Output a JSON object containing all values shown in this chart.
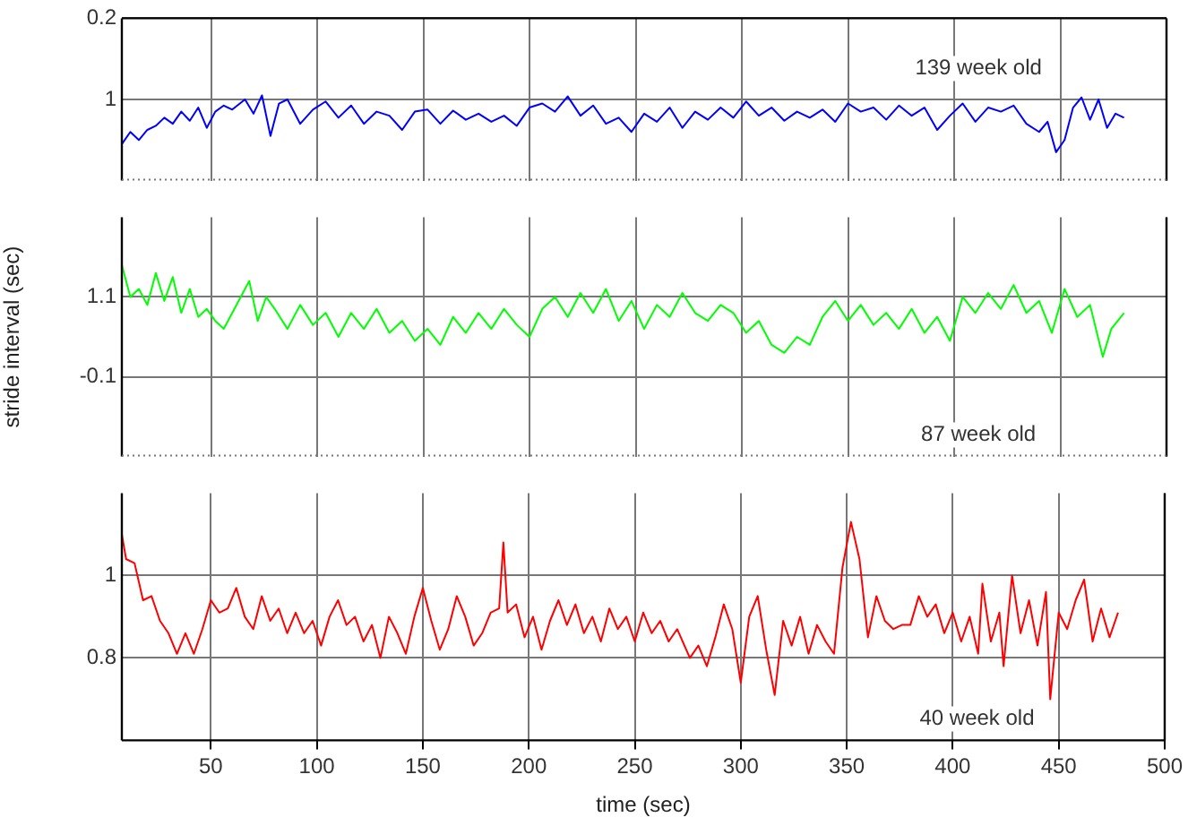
{
  "chart_data": [
    {
      "type": "line",
      "xlim": [
        8,
        500
      ],
      "xticks": [
        50,
        100,
        150,
        200,
        250,
        300,
        350,
        400,
        450,
        500
      ],
      "ylim": [
        1.8,
        0.2
      ],
      "yticks": [
        1,
        0.2
      ],
      "grid": true,
      "tick_labels": "y",
      "annotations": [
        "139 week old"
      ],
      "series": [
        {
          "color": "#0000ff",
          "x": [
            8,
            12,
            16,
            20,
            24,
            28,
            32,
            36,
            40,
            44,
            48,
            52,
            56,
            60,
            66,
            70,
            74,
            78,
            82,
            86,
            92,
            98,
            104,
            110,
            116,
            122,
            128,
            134,
            140,
            146,
            152,
            158,
            164,
            170,
            176,
            182,
            188,
            194,
            200,
            206,
            212,
            218,
            224,
            230,
            236,
            242,
            248,
            254,
            260,
            266,
            272,
            278,
            284,
            290,
            296,
            302,
            308,
            314,
            320,
            326,
            332,
            338,
            344,
            350,
            356,
            362,
            368,
            374,
            380,
            386,
            392,
            398,
            404,
            410,
            416,
            422,
            428,
            434,
            440,
            444,
            448,
            452,
            456,
            460,
            464,
            468,
            472,
            476,
            480
          ],
          "values": [
            1.44,
            1.32,
            1.4,
            1.3,
            1.26,
            1.18,
            1.24,
            1.12,
            1.21,
            1.08,
            1.28,
            1.12,
            1.06,
            1.1,
            1.0,
            1.14,
            0.96,
            1.36,
            1.04,
            1.0,
            1.24,
            1.1,
            1.02,
            1.18,
            1.06,
            1.24,
            1.12,
            1.16,
            1.3,
            1.12,
            1.1,
            1.24,
            1.11,
            1.2,
            1.14,
            1.22,
            1.16,
            1.26,
            1.08,
            1.04,
            1.12,
            0.97,
            1.16,
            1.06,
            1.24,
            1.18,
            1.32,
            1.14,
            1.22,
            1.08,
            1.28,
            1.12,
            1.2,
            1.08,
            1.18,
            1.02,
            1.16,
            1.08,
            1.21,
            1.12,
            1.18,
            1.1,
            1.22,
            1.04,
            1.12,
            1.08,
            1.2,
            1.06,
            1.16,
            1.08,
            1.3,
            1.16,
            1.04,
            1.22,
            1.08,
            1.12,
            1.06,
            1.24,
            1.32,
            1.22,
            1.52,
            1.4,
            1.08,
            0.98,
            1.2,
            1.0,
            1.28,
            1.14,
            1.18
          ]
        }
      ]
    },
    {
      "type": "line",
      "ylabel": "stride interval (sec)",
      "xlim": [
        8,
        500
      ],
      "xticks": [
        50,
        100,
        150,
        200,
        250,
        300,
        350,
        400,
        450,
        500
      ],
      "ylim": [
        -1.3,
        2.3
      ],
      "yticks": [
        -0.1,
        1.1
      ],
      "grid": true,
      "tick_labels": "y",
      "annotations": [
        "87 week old"
      ],
      "series": [
        {
          "color": "#00ff00",
          "x": [
            8,
            12,
            16,
            20,
            24,
            28,
            32,
            36,
            40,
            44,
            48,
            52,
            56,
            60,
            64,
            68,
            72,
            76,
            80,
            86,
            92,
            98,
            104,
            110,
            116,
            122,
            128,
            134,
            140,
            146,
            152,
            158,
            164,
            170,
            176,
            182,
            188,
            194,
            200,
            206,
            212,
            218,
            224,
            230,
            236,
            242,
            248,
            254,
            260,
            266,
            272,
            278,
            284,
            290,
            296,
            302,
            308,
            314,
            320,
            326,
            332,
            338,
            344,
            350,
            356,
            362,
            368,
            374,
            380,
            386,
            392,
            398,
            404,
            410,
            416,
            422,
            428,
            434,
            440,
            446,
            452,
            458,
            464,
            470,
            474,
            480
          ],
          "values": [
            1.58,
            1.1,
            1.22,
            0.98,
            1.46,
            1.04,
            1.4,
            0.86,
            1.22,
            0.8,
            0.92,
            0.74,
            0.62,
            0.86,
            1.1,
            1.34,
            0.74,
            1.1,
            0.92,
            0.62,
            0.98,
            0.68,
            0.86,
            0.5,
            0.86,
            0.62,
            0.92,
            0.56,
            0.74,
            0.44,
            0.62,
            0.38,
            0.8,
            0.56,
            0.86,
            0.62,
            0.92,
            0.68,
            0.5,
            0.92,
            1.1,
            0.8,
            1.16,
            0.86,
            1.22,
            0.74,
            1.04,
            0.62,
            0.98,
            0.8,
            1.16,
            0.86,
            0.74,
            0.98,
            0.86,
            0.56,
            0.74,
            0.38,
            0.26,
            0.5,
            0.38,
            0.8,
            1.04,
            0.74,
            0.98,
            0.68,
            0.86,
            0.62,
            0.92,
            0.56,
            0.8,
            0.44,
            1.1,
            0.86,
            1.16,
            0.92,
            1.28,
            0.86,
            1.04,
            0.56,
            1.22,
            0.8,
            0.98,
            0.2,
            0.62,
            0.86
          ]
        }
      ]
    },
    {
      "type": "line",
      "xlabel": "time (sec)",
      "xlim": [
        8,
        500
      ],
      "xticks": [
        50,
        100,
        150,
        200,
        250,
        300,
        350,
        400,
        450,
        500
      ],
      "ylim": [
        0.6,
        1.2
      ],
      "yticks": [
        0.8,
        1
      ],
      "grid": true,
      "annotations": [
        "40 week old"
      ],
      "series": [
        {
          "color": "#ff0000",
          "x": [
            8,
            10,
            14,
            18,
            22,
            26,
            30,
            34,
            38,
            42,
            46,
            50,
            54,
            58,
            62,
            66,
            70,
            74,
            78,
            82,
            86,
            90,
            94,
            98,
            102,
            106,
            110,
            114,
            118,
            122,
            126,
            130,
            134,
            138,
            142,
            146,
            150,
            154,
            158,
            162,
            166,
            170,
            174,
            178,
            182,
            186,
            188,
            190,
            194,
            198,
            202,
            206,
            210,
            214,
            218,
            222,
            226,
            230,
            234,
            238,
            242,
            246,
            250,
            254,
            258,
            262,
            266,
            270,
            276,
            280,
            284,
            288,
            292,
            296,
            300,
            304,
            308,
            312,
            316,
            320,
            324,
            328,
            332,
            336,
            340,
            344,
            348,
            352,
            356,
            360,
            364,
            368,
            372,
            376,
            380,
            384,
            388,
            392,
            396,
            400,
            404,
            408,
            412,
            414,
            418,
            422,
            424,
            428,
            432,
            436,
            440,
            444,
            446,
            450,
            454,
            458,
            462,
            466,
            470,
            474,
            478
          ],
          "values": [
            1.1,
            1.04,
            1.03,
            0.94,
            0.95,
            0.89,
            0.86,
            0.81,
            0.86,
            0.81,
            0.87,
            0.94,
            0.91,
            0.92,
            0.97,
            0.9,
            0.87,
            0.95,
            0.89,
            0.92,
            0.86,
            0.91,
            0.86,
            0.89,
            0.83,
            0.9,
            0.94,
            0.88,
            0.9,
            0.84,
            0.88,
            0.8,
            0.9,
            0.86,
            0.81,
            0.9,
            0.97,
            0.89,
            0.82,
            0.87,
            0.95,
            0.9,
            0.83,
            0.86,
            0.91,
            0.92,
            1.08,
            0.91,
            0.93,
            0.85,
            0.9,
            0.82,
            0.89,
            0.94,
            0.88,
            0.93,
            0.86,
            0.9,
            0.84,
            0.92,
            0.87,
            0.9,
            0.84,
            0.91,
            0.86,
            0.89,
            0.84,
            0.87,
            0.8,
            0.83,
            0.78,
            0.85,
            0.93,
            0.87,
            0.74,
            0.9,
            0.95,
            0.82,
            0.71,
            0.89,
            0.83,
            0.9,
            0.81,
            0.88,
            0.84,
            0.81,
            1.02,
            1.13,
            1.04,
            0.85,
            0.95,
            0.89,
            0.87,
            0.88,
            0.88,
            0.95,
            0.9,
            0.93,
            0.86,
            0.91,
            0.84,
            0.9,
            0.81,
            0.98,
            0.84,
            0.91,
            0.78,
            1.0,
            0.86,
            0.94,
            0.83,
            0.96,
            0.7,
            0.91,
            0.87,
            0.94,
            0.99,
            0.84,
            0.92,
            0.85,
            0.91
          ]
        }
      ]
    }
  ]
}
